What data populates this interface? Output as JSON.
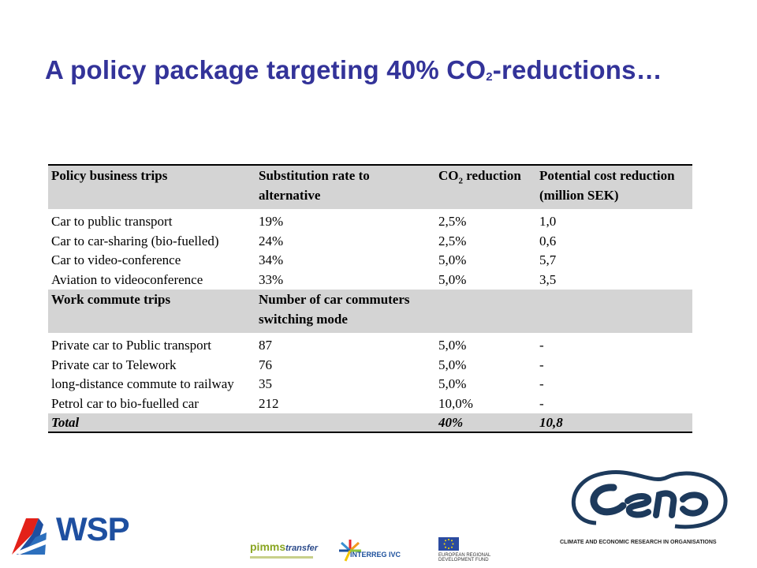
{
  "title": {
    "main": "A policy package targeting 40% CO",
    "sub": "2",
    "rest": "-reductions…"
  },
  "table": {
    "header1": {
      "c1": "Policy business trips",
      "c2a": "Substitution rate to",
      "c2b": "alternative",
      "c3": "CO",
      "c3sub": "2",
      "c3rest": " reduction",
      "c4a": "Potential cost reduction",
      "c4b": "(million SEK)"
    },
    "rows1": [
      {
        "c1": "Car to public transport",
        "c2": "19%",
        "c3": "2,5%",
        "c4": "1,0"
      },
      {
        "c1": "Car to car-sharing (bio-fuelled)",
        "c2": "24%",
        "c3": "2,5%",
        "c4": "0,6"
      },
      {
        "c1": "Car to video-conference",
        "c2": "34%",
        "c3": "5,0%",
        "c4": "5,7"
      },
      {
        "c1": "Aviation to videoconference",
        "c2": "33%",
        "c3": "5,0%",
        "c4": "3,5"
      }
    ],
    "header2": {
      "c1": "Work commute trips",
      "c2a": "Number of car commuters",
      "c2b": "switching mode"
    },
    "rows2": [
      {
        "c1": "Private car to Public transport",
        "c2": "87",
        "c3": "5,0%",
        "c4": "-"
      },
      {
        "c1": "Private car to Telework",
        "c2": "76",
        "c3": "5,0%",
        "c4": "-"
      },
      {
        "c1": "long-distance commute to railway",
        "c2": "35",
        "c3": "5,0%",
        "c4": "-"
      },
      {
        "c1": "Petrol car to bio-fuelled car",
        "c2": "212",
        "c3": "10,0%",
        "c4": "-"
      }
    ],
    "total": {
      "c1": "Total",
      "c3": "40%",
      "c4": "10,8"
    }
  },
  "logos": {
    "wsp": "WSP",
    "pimms": "pimms",
    "pimms_transfer": "transfer",
    "interreg": "INTERREG IVC",
    "eu_line1": "EUROPEAN REGIONAL",
    "eu_line2": "DEVELOPMENT FUND",
    "cero_caption": "CLIMATE AND ECONOMIC RESEARCH IN ORGANISATIONS"
  },
  "colors": {
    "title": "#333399",
    "header_bg": "#d4d4d4",
    "wsp_blue": "#1e4fa0",
    "wsp_red": "#e32119",
    "cero_navy": "#1d3a5c"
  }
}
